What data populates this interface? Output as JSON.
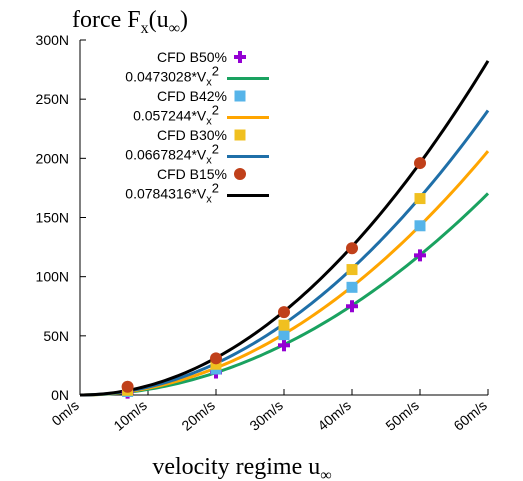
{
  "chart_data": {
    "type": "scatter",
    "title": "force F",
    "title_sub": "x",
    "title_paren": "(u",
    "title_sub2": "∞",
    "title_close": ")",
    "xlabel": "velocity regime u",
    "xlabel_sub": "∞",
    "ylabel": "",
    "xlim": [
      0,
      60
    ],
    "ylim": [
      0,
      300
    ],
    "x_ticks": [
      "0m/s",
      "10m/s",
      "20m/s",
      "30m/s",
      "40m/s",
      "50m/s",
      "60m/s"
    ],
    "y_ticks": [
      "0N",
      "50N",
      "100N",
      "150N",
      "200N",
      "250N",
      "300N"
    ],
    "x_tick_values": [
      0,
      10,
      20,
      30,
      40,
      50,
      60
    ],
    "y_tick_values": [
      0,
      50,
      100,
      150,
      200,
      250,
      300
    ],
    "legend_position": "top-left",
    "points": [
      {
        "name": "CFD B50%",
        "color": "#9400d3",
        "marker": "plus",
        "x": [
          7,
          20,
          30,
          40,
          50
        ],
        "y": [
          2,
          19,
          42,
          75,
          118
        ]
      },
      {
        "name": "CFD B42%",
        "color": "#56b4e9",
        "marker": "square",
        "x": [
          7,
          20,
          30,
          40,
          50
        ],
        "y": [
          3,
          22,
          51,
          91,
          143
        ]
      },
      {
        "name": "CFD B30%",
        "color": "#f0c020",
        "marker": "square",
        "x": [
          7,
          20,
          30,
          40,
          50
        ],
        "y": [
          4,
          26,
          59,
          106,
          166
        ]
      },
      {
        "name": "CFD B15%",
        "color": "#c0401a",
        "marker": "circle",
        "x": [
          7,
          20,
          30,
          40,
          50
        ],
        "y": [
          7,
          31,
          70,
          124,
          196
        ]
      }
    ],
    "fits": [
      {
        "name_prefix": "0.0473028*V",
        "name_sub": "x",
        "name_sup": "2",
        "coef": 0.0473028,
        "color": "#1aa260"
      },
      {
        "name_prefix": "0.057244*V",
        "name_sub": "x",
        "name_sup": "2",
        "coef": 0.057244,
        "color": "#ffa500"
      },
      {
        "name_prefix": "0.0667824*V",
        "name_sub": "x",
        "name_sup": "2",
        "coef": 0.0667824,
        "color": "#1f6fa8"
      },
      {
        "name_prefix": "0.0784316*V",
        "name_sub": "x",
        "name_sup": "2",
        "coef": 0.0784316,
        "color": "#000000"
      }
    ]
  }
}
